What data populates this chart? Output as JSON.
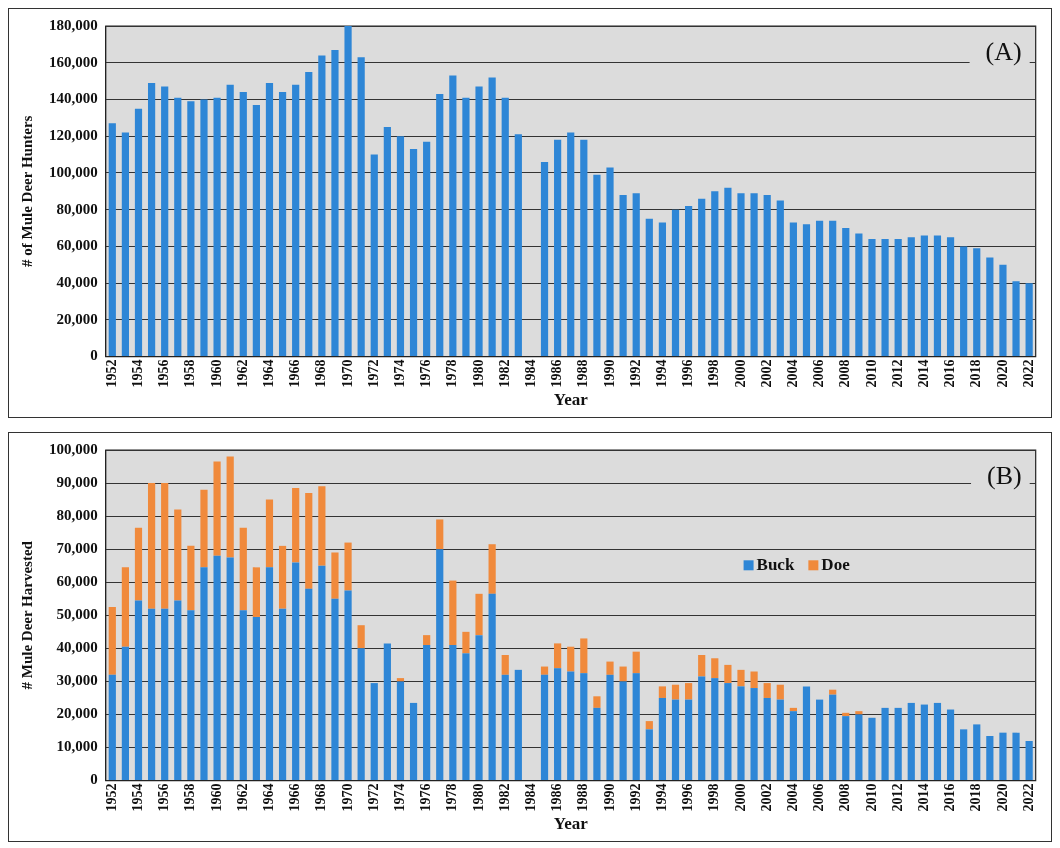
{
  "chart_data": [
    {
      "type": "bar",
      "xlabel": "Year",
      "ylabel": "# of Mule Deer Hunters",
      "annotations": [
        "(A)"
      ],
      "categories": [
        "1952",
        null,
        "1954",
        null,
        "1956",
        null,
        "1958",
        null,
        "1960",
        null,
        "1962",
        null,
        "1964",
        null,
        "1966",
        null,
        "1968",
        null,
        "1970",
        null,
        "1972",
        null,
        "1974",
        null,
        "1976",
        null,
        "1978",
        null,
        "1980",
        null,
        "1982",
        null,
        "1984",
        null,
        "1986",
        null,
        "1988",
        null,
        "1990",
        null,
        "1992",
        null,
        "1994",
        null,
        "1996",
        null,
        "1998",
        null,
        "2000",
        null,
        "2002",
        null,
        "2004",
        null,
        "2006",
        null,
        "2008",
        null,
        "2010",
        null,
        "2012",
        null,
        "2014",
        null,
        "2016",
        null,
        "2018",
        null,
        "2020",
        null,
        "2022"
      ],
      "color": "#2e86d6",
      "values": [
        127000,
        122000,
        135000,
        149000,
        147000,
        141000,
        139000,
        140000,
        141000,
        148000,
        144000,
        137000,
        149000,
        144000,
        148000,
        155000,
        164000,
        167000,
        180000,
        163000,
        110000,
        125000,
        120000,
        113000,
        117000,
        143000,
        153000,
        141000,
        147000,
        152000,
        141000,
        121000,
        null,
        106000,
        118000,
        122000,
        118000,
        99000,
        103000,
        88000,
        89000,
        75000,
        73000,
        80000,
        82000,
        86000,
        90000,
        92000,
        89000,
        89000,
        88000,
        85000,
        73000,
        72000,
        74000,
        74000,
        70000,
        67000,
        64000,
        64000,
        64000,
        65000,
        66000,
        66000,
        65000,
        60000,
        59000,
        54000,
        50000,
        41000,
        40000
      ],
      "ylim": [
        0,
        180000
      ],
      "yticks": [
        {
          "value": 0,
          "label": "0"
        },
        {
          "value": 20000,
          "label": "20,000"
        },
        {
          "value": 40000,
          "label": "40,000"
        },
        {
          "value": 60000,
          "label": "60,000"
        },
        {
          "value": 80000,
          "label": "80,000"
        },
        {
          "value": 100000,
          "label": "100,000"
        },
        {
          "value": 120000,
          "label": "120,000"
        },
        {
          "value": 140000,
          "label": "140,000"
        },
        {
          "value": 160000,
          "label": "160,000"
        },
        {
          "value": 180000,
          "label": "180,000"
        }
      ],
      "grid": "y"
    },
    {
      "type": "bar",
      "xlabel": "Year",
      "ylabel": "# Mule Deer Harvested",
      "annotations": [
        "(B)"
      ],
      "categories": [
        "1952",
        null,
        "1954",
        null,
        "1956",
        null,
        "1958",
        null,
        "1960",
        null,
        "1962",
        null,
        "1964",
        null,
        "1966",
        null,
        "1968",
        null,
        "1970",
        null,
        "1972",
        null,
        "1974",
        null,
        "1976",
        null,
        "1978",
        null,
        "1980",
        null,
        "1982",
        null,
        "1984",
        null,
        "1986",
        null,
        "1988",
        null,
        "1990",
        null,
        "1992",
        null,
        "1994",
        null,
        "1996",
        null,
        "1998",
        null,
        "2000",
        null,
        "2002",
        null,
        "2004",
        null,
        "2006",
        null,
        "2008",
        null,
        "2010",
        null,
        "2012",
        null,
        "2014",
        null,
        "2016",
        null,
        "2018",
        null,
        "2020",
        null,
        "2022"
      ],
      "stacked": true,
      "series": [
        {
          "name": "Buck",
          "color": "#2e86d6",
          "values": [
            32000,
            40500,
            54500,
            52000,
            52000,
            54500,
            51500,
            64500,
            68000,
            67500,
            51500,
            49500,
            64500,
            52000,
            66000,
            58000,
            65000,
            55000,
            57500,
            40000,
            29500,
            41500,
            30000,
            23500,
            41000,
            70000,
            41000,
            38500,
            44000,
            56500,
            32000,
            33500,
            null,
            32000,
            34000,
            33000,
            32500,
            22000,
            32000,
            30000,
            32500,
            15500,
            25000,
            24500,
            24500,
            31500,
            31000,
            29500,
            28500,
            28000,
            25000,
            24500,
            21000,
            28500,
            24500,
            26000,
            19500,
            20000,
            19000,
            22000,
            22000,
            23500,
            23000,
            23500,
            21500,
            15500,
            17000,
            13500,
            14500,
            14500,
            12000
          ]
        },
        {
          "name": "Doe",
          "color": "#f08a3c",
          "values": [
            20500,
            24000,
            22000,
            38000,
            38000,
            27500,
            19500,
            23500,
            28500,
            30500,
            25000,
            15000,
            20500,
            19000,
            22500,
            29000,
            24000,
            14000,
            14500,
            7000,
            0,
            0,
            1000,
            0,
            3000,
            9000,
            19500,
            6500,
            12500,
            15000,
            6000,
            0,
            null,
            2500,
            7500,
            7500,
            10500,
            3500,
            4000,
            4500,
            6500,
            2500,
            3500,
            4500,
            5000,
            6500,
            6000,
            5500,
            5000,
            5000,
            4500,
            4500,
            1000,
            0,
            0,
            1500,
            1000,
            1000,
            0,
            0,
            0,
            0,
            0,
            0,
            0,
            0,
            0,
            0,
            0,
            0,
            0
          ]
        }
      ],
      "ylim": [
        0,
        100000
      ],
      "yticks": [
        {
          "value": 0,
          "label": "0"
        },
        {
          "value": 10000,
          "label": "10,000"
        },
        {
          "value": 20000,
          "label": "20,000"
        },
        {
          "value": 30000,
          "label": "30,000"
        },
        {
          "value": 40000,
          "label": "40,000"
        },
        {
          "value": 50000,
          "label": "50,000"
        },
        {
          "value": 60000,
          "label": "60,000"
        },
        {
          "value": 70000,
          "label": "70,000"
        },
        {
          "value": 80000,
          "label": "80,000"
        },
        {
          "value": 90000,
          "label": "90,000"
        },
        {
          "value": 100000,
          "label": "100,000"
        }
      ],
      "grid": "y",
      "legend": "right"
    }
  ]
}
